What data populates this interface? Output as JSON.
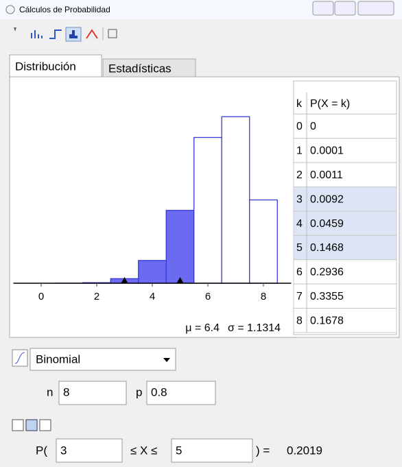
{
  "window": {
    "title": "Cálculos de Probabilidad"
  },
  "tabs": [
    "Distribución",
    "Estadísticas"
  ],
  "chart_data": {
    "type": "bar",
    "x": [
      0,
      1,
      2,
      3,
      4,
      5,
      6,
      7,
      8
    ],
    "values": [
      0,
      0.0001,
      0.0011,
      0.0092,
      0.0459,
      0.1468,
      0.2936,
      0.3355,
      0.1678
    ],
    "xlim": [
      -1,
      9
    ],
    "xticks": [
      0,
      2,
      4,
      6,
      8
    ],
    "ylim": [
      0,
      0.36
    ],
    "color": "#6b6bf2",
    "edge_color": "#3a3ad6",
    "mean_label": "μ = 6.4",
    "sd_label": "σ = 1.1314"
  },
  "table": {
    "header": [
      "k",
      "P(X = k)"
    ]
  },
  "distribution": {
    "name": "Binomial",
    "params": [
      {
        "label": "n",
        "value": "8"
      },
      {
        "label": "p",
        "value": "0.8"
      }
    ]
  },
  "interval": {
    "prefix": "P(",
    "low": 3,
    "between": "≤ X ≤",
    "high": 5,
    "close": ") =",
    "result": "0.2019"
  }
}
